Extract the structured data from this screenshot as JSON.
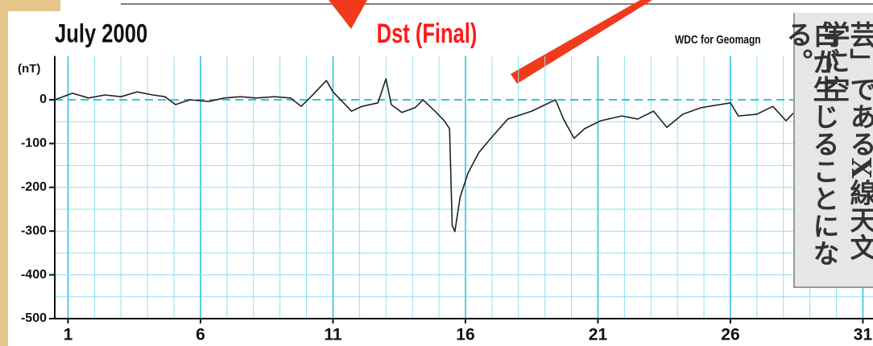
{
  "chart_data": {
    "type": "line",
    "title": "Dst (Final)",
    "period": "July  2000",
    "source": "WDC for Geomagn",
    "y_label": "(nT)",
    "x": [
      0.5,
      1.17,
      1.78,
      2.39,
      3.0,
      3.6,
      4.2,
      4.66,
      5.06,
      5.6,
      6.3,
      6.9,
      7.5,
      8.1,
      8.8,
      9.4,
      9.8,
      10.3,
      10.75,
      11.0,
      11.4,
      11.7,
      12.1,
      12.7,
      13.0,
      13.2,
      13.6,
      14.1,
      14.4,
      14.9,
      15.2,
      15.4,
      15.5,
      15.6,
      15.8,
      16.1,
      16.5,
      17.0,
      17.6,
      18.5,
      19.4,
      19.7,
      20.1,
      20.5,
      21.1,
      21.9,
      22.5,
      23.1,
      23.6,
      24.2,
      24.9,
      26.0,
      26.3,
      27.0,
      27.6,
      28.1,
      28.4
    ],
    "series": [
      {
        "name": "Dst",
        "color": "#222222",
        "values": [
          0,
          15,
          4,
          11,
          7,
          18,
          11,
          7,
          -11,
          0,
          -4,
          4,
          7,
          4,
          7,
          4,
          -15,
          15,
          44,
          18,
          -7,
          -26,
          -15,
          -7,
          48,
          -11,
          -29,
          -18,
          0,
          -29,
          -48,
          -66,
          -287,
          -301,
          -222,
          -167,
          -121,
          -85,
          -44,
          -26,
          0,
          -44,
          -88,
          -66,
          -48,
          -37,
          -44,
          -26,
          -63,
          -33,
          -18,
          -7,
          -37,
          -33,
          -15,
          -48,
          -29
        ]
      }
    ],
    "xlim": [
      0.5,
      31.5
    ],
    "xticks": [
      1,
      6,
      11,
      16,
      21,
      26,
      31
    ],
    "ylim": [
      -500,
      100
    ],
    "yticks": [
      0,
      -100,
      -200,
      -300,
      -400,
      -500
    ],
    "grid": true,
    "grid_color": "#8fe0ee",
    "zero_line_color": "#33c6dd",
    "title_color": "#ff1a1a",
    "clipping_text": [
      "芸」であるX線天文学に空",
      "白が生じることになる。"
    ]
  }
}
